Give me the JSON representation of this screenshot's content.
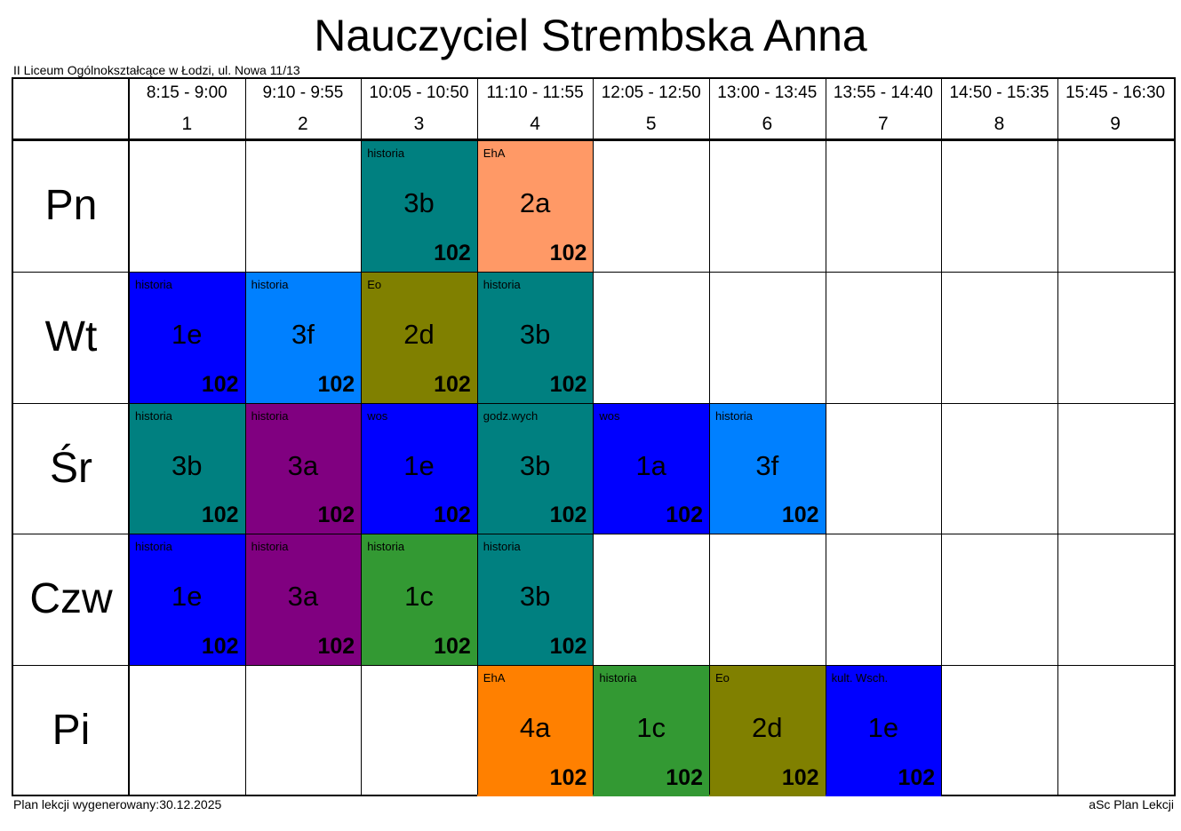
{
  "title": "Nauczyciel Strembska Anna",
  "school": "II Liceum Ogólnokształcące w Łodzi, ul. Nowa 11/13",
  "footer": {
    "generated": "Plan lekcji wygenerowany:30.12.2025",
    "brand": "aSc Plan Lekcji"
  },
  "periods": [
    {
      "time": "8:15 - 9:00",
      "number": "1"
    },
    {
      "time": "9:10 - 9:55",
      "number": "2"
    },
    {
      "time": "10:05 - 10:50",
      "number": "3"
    },
    {
      "time": "11:10 - 11:55",
      "number": "4"
    },
    {
      "time": "12:05 - 12:50",
      "number": "5"
    },
    {
      "time": "13:00 - 13:45",
      "number": "6"
    },
    {
      "time": "13:55 - 14:40",
      "number": "7"
    },
    {
      "time": "14:50 - 15:35",
      "number": "8"
    },
    {
      "time": "15:45 - 16:30",
      "number": "9"
    }
  ],
  "days": [
    "Pn",
    "Wt",
    "Śr",
    "Czw",
    "Pi"
  ],
  "lessons": [
    {
      "day": 0,
      "period": 3,
      "subject": "historia",
      "class": "3b",
      "room": "102",
      "color": "#008080"
    },
    {
      "day": 0,
      "period": 4,
      "subject": "EhA",
      "class": "2a",
      "room": "102",
      "color": "#FF9966"
    },
    {
      "day": 1,
      "period": 1,
      "subject": "historia",
      "class": "1e",
      "room": "102",
      "color": "#0000FF"
    },
    {
      "day": 1,
      "period": 2,
      "subject": "historia",
      "class": "3f",
      "room": "102",
      "color": "#0080FF"
    },
    {
      "day": 1,
      "period": 3,
      "subject": "Eo",
      "class": "2d",
      "room": "102",
      "color": "#808000"
    },
    {
      "day": 1,
      "period": 4,
      "subject": "historia",
      "class": "3b",
      "room": "102",
      "color": "#008080"
    },
    {
      "day": 2,
      "period": 1,
      "subject": "historia",
      "class": "3b",
      "room": "102",
      "color": "#008080"
    },
    {
      "day": 2,
      "period": 2,
      "subject": "historia",
      "class": "3a",
      "room": "102",
      "color": "#800080"
    },
    {
      "day": 2,
      "period": 3,
      "subject": "wos",
      "class": "1e",
      "room": "102",
      "color": "#0000FF"
    },
    {
      "day": 2,
      "period": 4,
      "subject": "godz.wych",
      "class": "3b",
      "room": "102",
      "color": "#008080"
    },
    {
      "day": 2,
      "period": 5,
      "subject": "wos",
      "class": "1a",
      "room": "102",
      "color": "#0000FF"
    },
    {
      "day": 2,
      "period": 6,
      "subject": "historia",
      "class": "3f",
      "room": "102",
      "color": "#0080FF"
    },
    {
      "day": 3,
      "period": 1,
      "subject": "historia",
      "class": "1e",
      "room": "102",
      "color": "#0000FF"
    },
    {
      "day": 3,
      "period": 2,
      "subject": "historia",
      "class": "3a",
      "room": "102",
      "color": "#800080"
    },
    {
      "day": 3,
      "period": 3,
      "subject": "historia",
      "class": "1c",
      "room": "102",
      "color": "#339933"
    },
    {
      "day": 3,
      "period": 4,
      "subject": "historia",
      "class": "3b",
      "room": "102",
      "color": "#008080"
    },
    {
      "day": 4,
      "period": 4,
      "subject": "EhA",
      "class": "4a",
      "room": "102",
      "color": "#FF8000"
    },
    {
      "day": 4,
      "period": 5,
      "subject": "historia",
      "class": "1c",
      "room": "102",
      "color": "#339933"
    },
    {
      "day": 4,
      "period": 6,
      "subject": "Eo",
      "class": "2d",
      "room": "102",
      "color": "#808000"
    },
    {
      "day": 4,
      "period": 7,
      "subject": "kult. Wsch.",
      "class": "1e",
      "room": "102",
      "color": "#0000FF"
    }
  ]
}
